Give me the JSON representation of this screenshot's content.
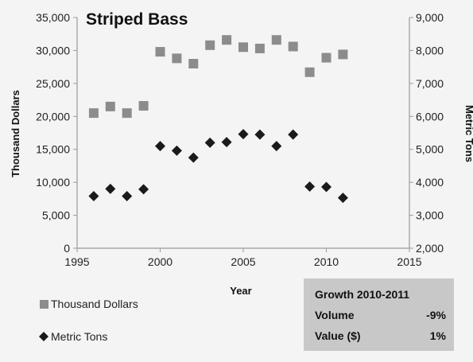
{
  "chart_data": {
    "type": "scatter",
    "title": "Striped Bass",
    "xlabel": "Year",
    "ylabel": "Thousand Dollars",
    "y2label": "Metric Tons",
    "xlim": [
      1995,
      2015
    ],
    "ylim": [
      0,
      35000
    ],
    "y2lim": [
      2000,
      9000
    ],
    "x_ticks": [
      1995,
      2000,
      2005,
      2010,
      2015
    ],
    "y_ticks": [
      "0",
      "5,000",
      "10,000",
      "15,000",
      "20,000",
      "25,000",
      "30,000",
      "35,000"
    ],
    "y2_ticks": [
      "2,000",
      "3,000",
      "4,000",
      "5,000",
      "6,000",
      "7,000",
      "8,000",
      "9,000"
    ],
    "grid": false,
    "legend_position": "bottom-left",
    "series": [
      {
        "name": "Thousand Dollars",
        "axis": "left",
        "marker": "square",
        "color": "#8c8c8c",
        "x": [
          1996,
          1997,
          1998,
          1999,
          2000,
          2001,
          2002,
          2003,
          2004,
          2005,
          2006,
          2007,
          2008,
          2009,
          2010,
          2011
        ],
        "y": [
          20500,
          21500,
          20500,
          21600,
          29800,
          28800,
          28000,
          30800,
          31600,
          30500,
          30300,
          31600,
          30600,
          26700,
          28900,
          29400
        ]
      },
      {
        "name": "Metric Tons",
        "axis": "right",
        "marker": "diamond",
        "color": "#1a1a1a",
        "x": [
          1996,
          1997,
          1998,
          1999,
          2000,
          2001,
          2002,
          2003,
          2004,
          2005,
          2006,
          2007,
          2008,
          2009,
          2010,
          2011
        ],
        "y": [
          3580,
          3800,
          3580,
          3790,
          5100,
          4960,
          4750,
          5200,
          5220,
          5460,
          5450,
          5100,
          5450,
          3870,
          3860,
          3530
        ]
      }
    ],
    "growth_box": {
      "title": "Growth 2010-2011",
      "rows": [
        {
          "label": "Volume",
          "value": "-9%"
        },
        {
          "label": "Value ($)",
          "value": "1%"
        }
      ]
    }
  }
}
